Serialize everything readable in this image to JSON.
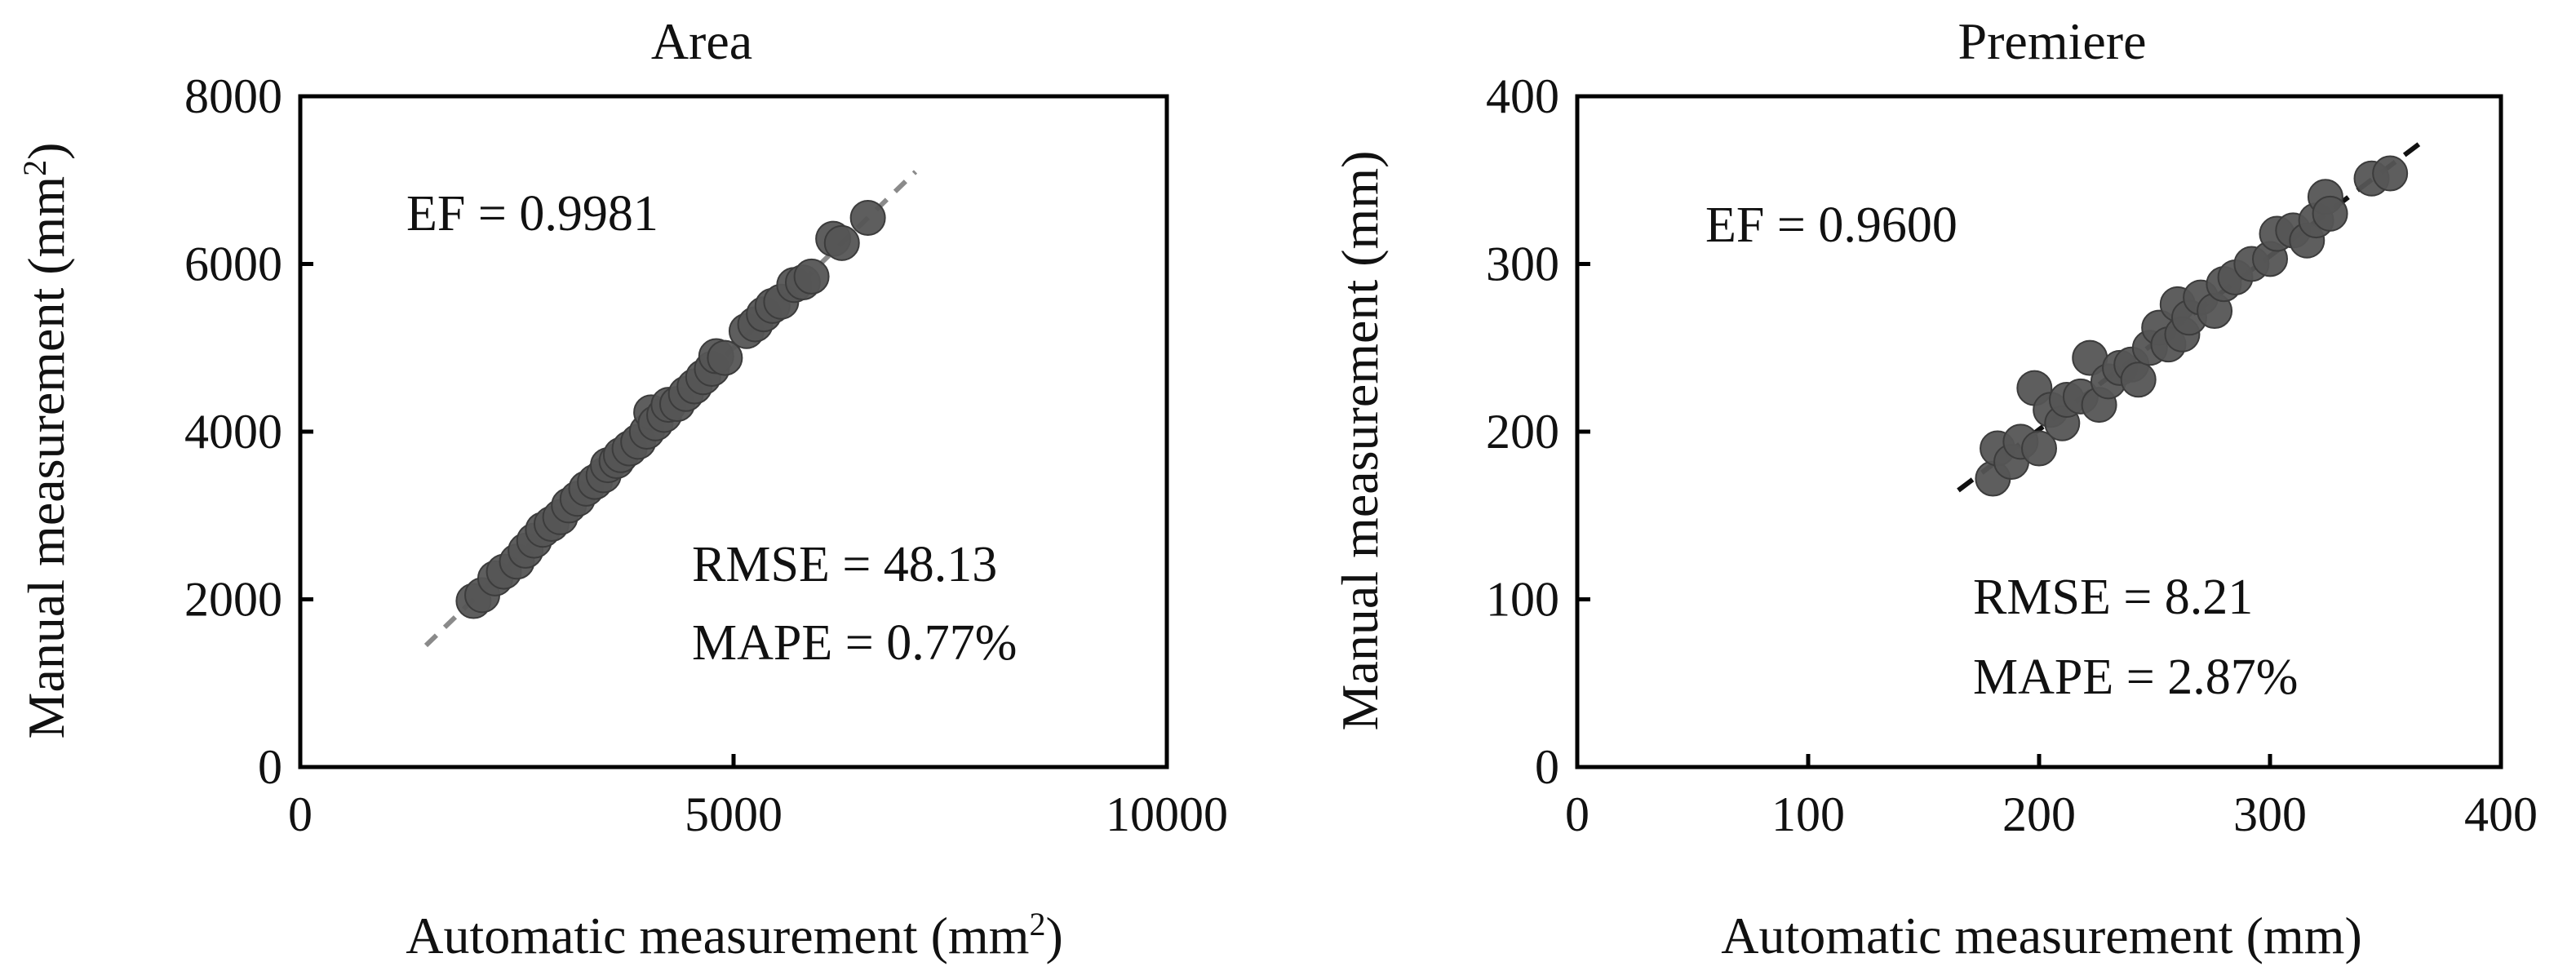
{
  "colors": {
    "point": "#555555",
    "point_stroke": "#3c3c3c",
    "line_area": "#8a8a8a",
    "line_premiere": "#111111",
    "axis": "#000000"
  },
  "chart_data": [
    {
      "type": "scatter",
      "title": "Area",
      "xlabel_main": "Automatic measurement (mm",
      "xlabel_sup": "2",
      "xlabel_end": ")",
      "ylabel_main": "Manual measurement (mm",
      "ylabel_sup": "2",
      "ylabel_end": ")",
      "xlim": [
        0,
        10000
      ],
      "ylim": [
        0,
        8000
      ],
      "xticks": [
        0,
        5000,
        10000
      ],
      "yticks": [
        0,
        2000,
        4000,
        6000,
        8000
      ],
      "annotations": {
        "ef": "EF = 0.9981",
        "rmse": "RMSE = 48.13",
        "mape": "MAPE = 0.77%"
      },
      "fit_line": {
        "style": "dashed",
        "x": [
          1450,
          7100
        ],
        "y": [
          1450,
          7100
        ]
      },
      "points": [
        {
          "x": 2000,
          "y": 1980
        },
        {
          "x": 2100,
          "y": 2050
        },
        {
          "x": 2250,
          "y": 2250
        },
        {
          "x": 2350,
          "y": 2330
        },
        {
          "x": 2500,
          "y": 2450
        },
        {
          "x": 2600,
          "y": 2580
        },
        {
          "x": 2700,
          "y": 2700
        },
        {
          "x": 2800,
          "y": 2830
        },
        {
          "x": 2900,
          "y": 2900
        },
        {
          "x": 3000,
          "y": 2980
        },
        {
          "x": 3100,
          "y": 3120
        },
        {
          "x": 3200,
          "y": 3200
        },
        {
          "x": 3300,
          "y": 3320
        },
        {
          "x": 3400,
          "y": 3400
        },
        {
          "x": 3500,
          "y": 3480
        },
        {
          "x": 3550,
          "y": 3600
        },
        {
          "x": 3650,
          "y": 3650
        },
        {
          "x": 3700,
          "y": 3720
        },
        {
          "x": 3800,
          "y": 3800
        },
        {
          "x": 3900,
          "y": 3880
        },
        {
          "x": 4000,
          "y": 4000
        },
        {
          "x": 4050,
          "y": 4230
        },
        {
          "x": 4100,
          "y": 4100
        },
        {
          "x": 4200,
          "y": 4200
        },
        {
          "x": 4250,
          "y": 4320
        },
        {
          "x": 4350,
          "y": 4330
        },
        {
          "x": 4450,
          "y": 4450
        },
        {
          "x": 4550,
          "y": 4540
        },
        {
          "x": 4650,
          "y": 4650
        },
        {
          "x": 4750,
          "y": 4750
        },
        {
          "x": 4800,
          "y": 4900
        },
        {
          "x": 4900,
          "y": 4880
        },
        {
          "x": 5150,
          "y": 5200
        },
        {
          "x": 5250,
          "y": 5280
        },
        {
          "x": 5350,
          "y": 5400
        },
        {
          "x": 5450,
          "y": 5500
        },
        {
          "x": 5550,
          "y": 5550
        },
        {
          "x": 5700,
          "y": 5750
        },
        {
          "x": 5800,
          "y": 5780
        },
        {
          "x": 5900,
          "y": 5850
        },
        {
          "x": 6150,
          "y": 6300
        },
        {
          "x": 6250,
          "y": 6250
        },
        {
          "x": 6550,
          "y": 6550
        }
      ]
    },
    {
      "type": "scatter",
      "title": "Premiere",
      "xlabel_main": "Automatic measurement (mm)",
      "xlabel_sup": "",
      "xlabel_end": "",
      "ylabel_main": "Manual measurement (mm)",
      "ylabel_sup": "",
      "ylabel_end": "",
      "xlim": [
        0,
        400
      ],
      "ylim": [
        0,
        400
      ],
      "xticks": [
        0,
        100,
        200,
        300,
        400
      ],
      "yticks": [
        0,
        100,
        200,
        300,
        400
      ],
      "annotations": {
        "ef": "EF = 0.9600",
        "rmse": "RMSE = 8.21",
        "mape": "MAPE = 2.87%"
      },
      "fit_line": {
        "style": "dashed",
        "x": [
          165,
          365
        ],
        "y": [
          165,
          372
        ]
      },
      "points": [
        {
          "x": 180,
          "y": 172
        },
        {
          "x": 182,
          "y": 190
        },
        {
          "x": 188,
          "y": 182
        },
        {
          "x": 192,
          "y": 194
        },
        {
          "x": 198,
          "y": 226
        },
        {
          "x": 200,
          "y": 190
        },
        {
          "x": 205,
          "y": 213
        },
        {
          "x": 210,
          "y": 205
        },
        {
          "x": 212,
          "y": 219
        },
        {
          "x": 218,
          "y": 221
        },
        {
          "x": 222,
          "y": 244
        },
        {
          "x": 226,
          "y": 216
        },
        {
          "x": 230,
          "y": 230
        },
        {
          "x": 235,
          "y": 238
        },
        {
          "x": 240,
          "y": 240
        },
        {
          "x": 243,
          "y": 231
        },
        {
          "x": 248,
          "y": 250
        },
        {
          "x": 252,
          "y": 262
        },
        {
          "x": 256,
          "y": 252
        },
        {
          "x": 260,
          "y": 276
        },
        {
          "x": 262,
          "y": 258
        },
        {
          "x": 265,
          "y": 268
        },
        {
          "x": 270,
          "y": 280
        },
        {
          "x": 276,
          "y": 272
        },
        {
          "x": 280,
          "y": 288
        },
        {
          "x": 285,
          "y": 292
        },
        {
          "x": 292,
          "y": 300
        },
        {
          "x": 300,
          "y": 303
        },
        {
          "x": 303,
          "y": 318
        },
        {
          "x": 310,
          "y": 320
        },
        {
          "x": 316,
          "y": 314
        },
        {
          "x": 320,
          "y": 326
        },
        {
          "x": 324,
          "y": 340
        },
        {
          "x": 326,
          "y": 330
        },
        {
          "x": 344,
          "y": 351
        },
        {
          "x": 352,
          "y": 354
        }
      ]
    }
  ]
}
